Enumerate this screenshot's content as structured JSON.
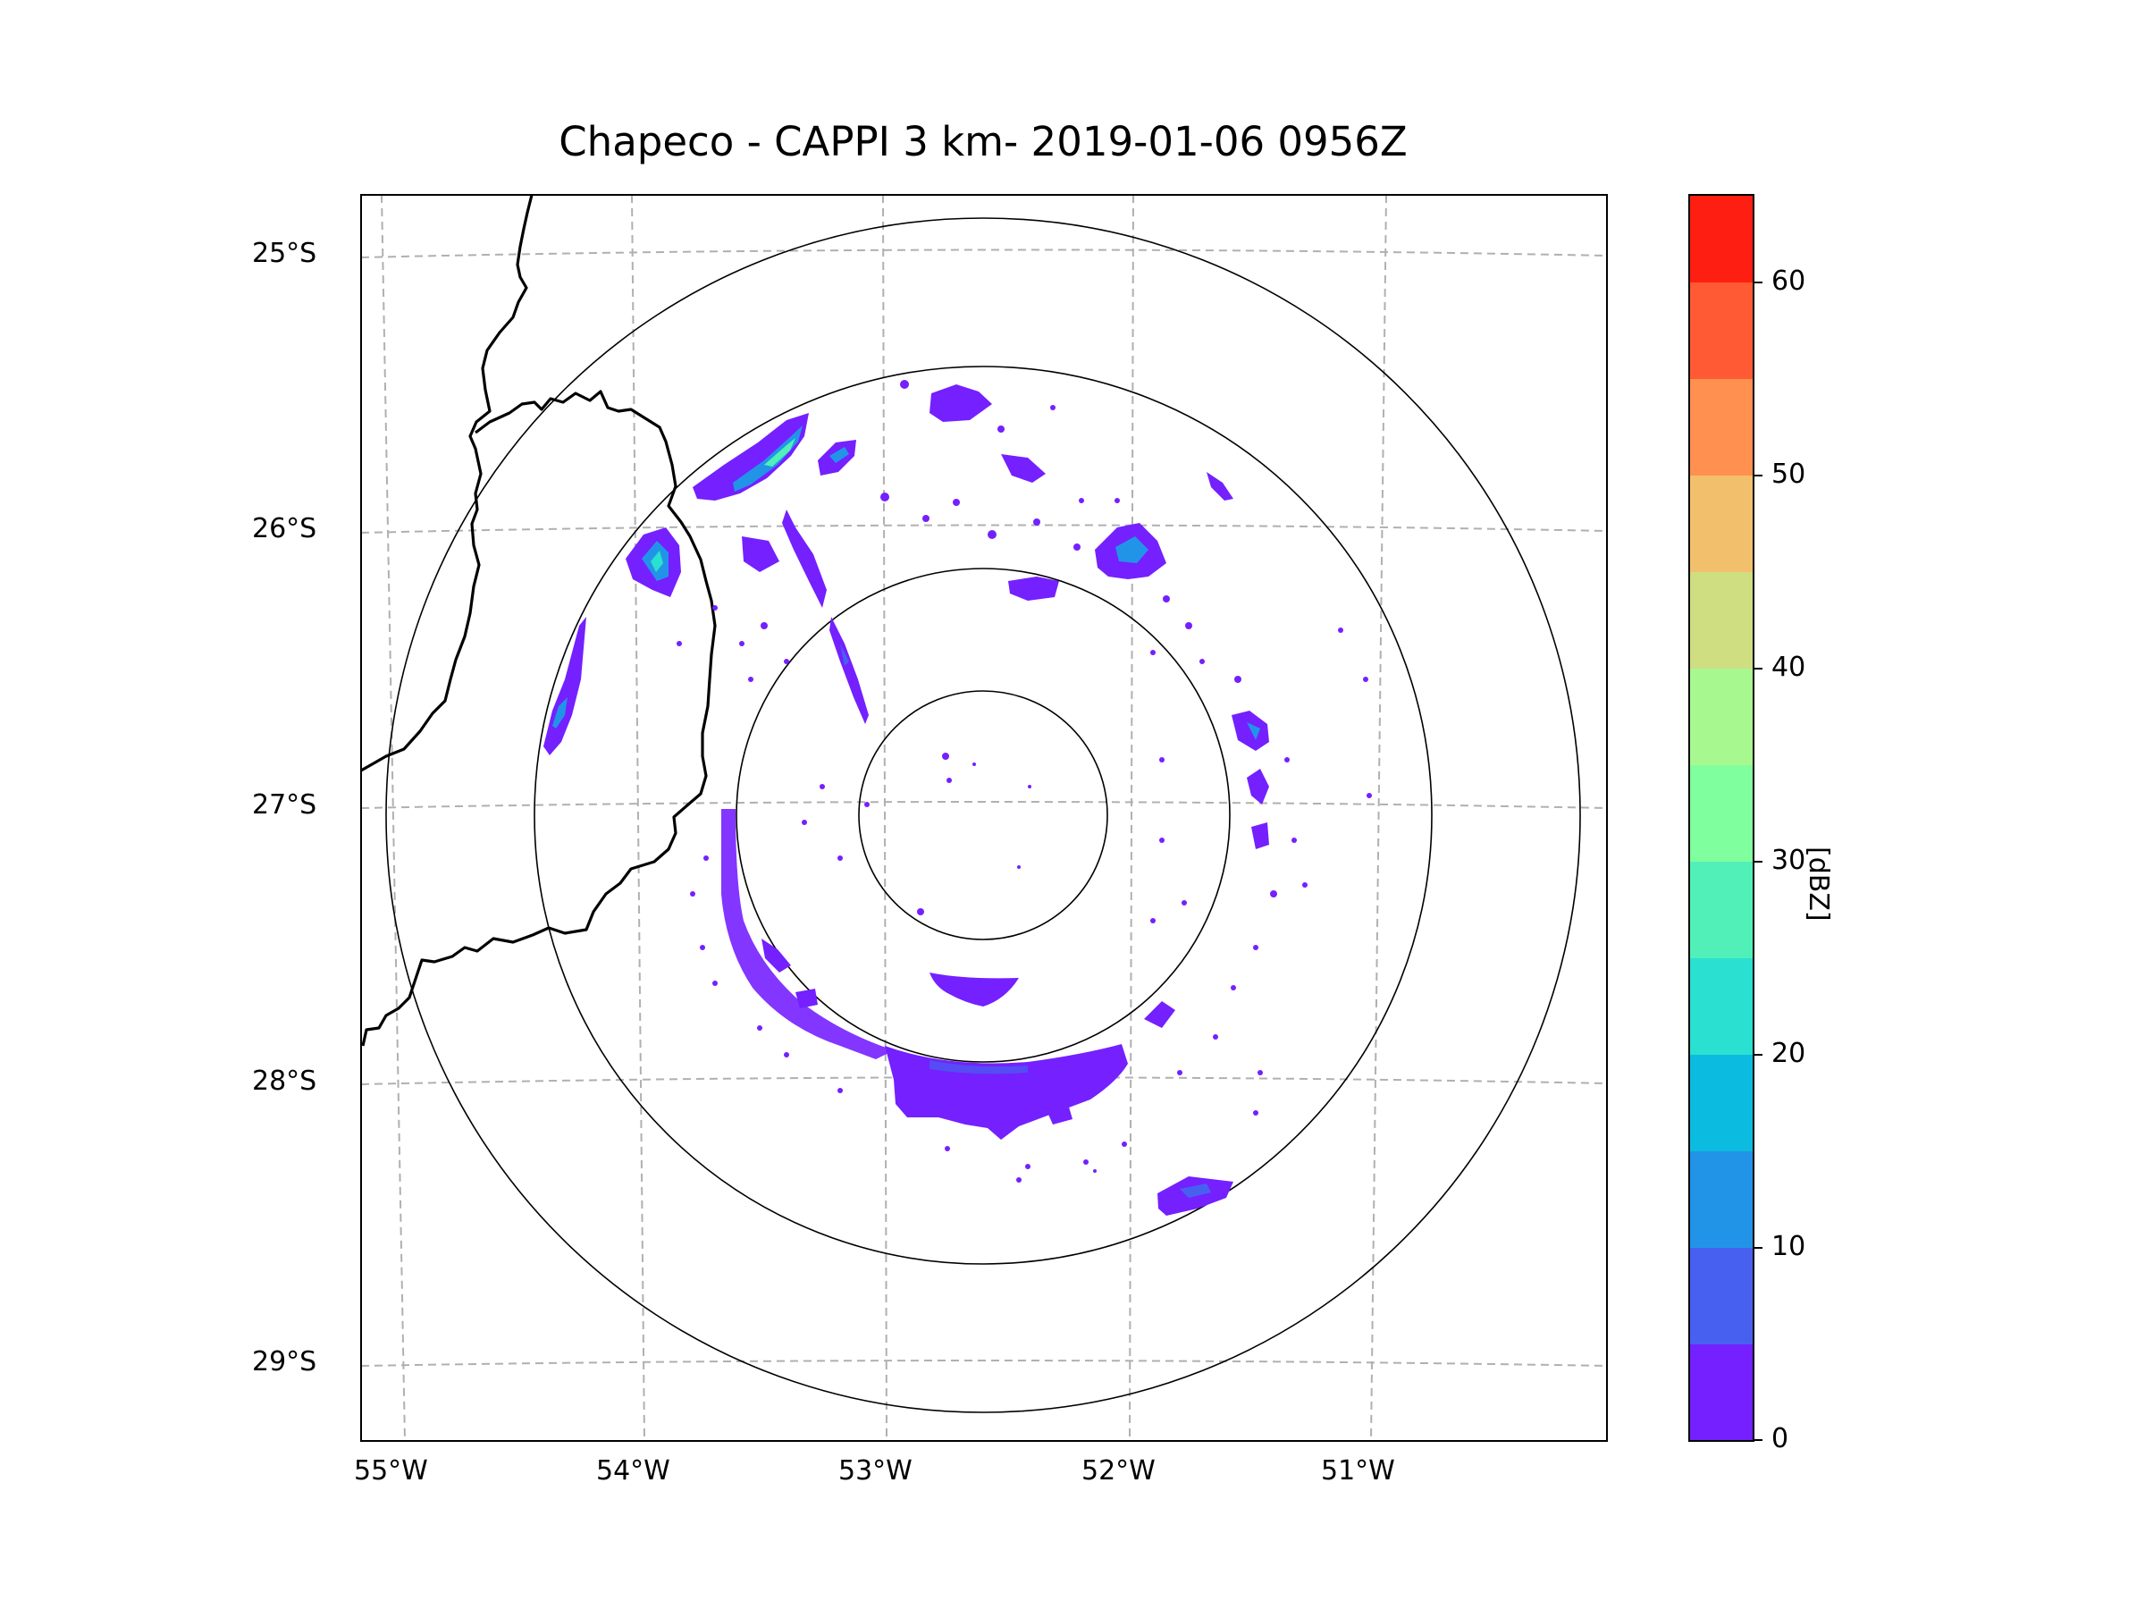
{
  "title": "Chapeco - CAPPI 3 km- 2019-01-06 0956Z",
  "colorbar": {
    "label": "[dBZ]",
    "tick_labels": [
      "0",
      "10",
      "20",
      "30",
      "40",
      "50",
      "60"
    ],
    "bins": [
      0,
      5,
      10,
      15,
      20,
      25,
      30,
      35,
      40,
      45,
      50,
      55,
      60,
      65
    ],
    "colors": [
      "#7420ff",
      "#4860f0",
      "#2294e8",
      "#0cbce0",
      "#2ae0d0",
      "#50f0b8",
      "#80ff9e",
      "#a8f890",
      "#cede80",
      "#f2c06c",
      "#ff9050",
      "#ff5a34",
      "#ff1e12"
    ]
  },
  "y_axis": {
    "labels": [
      "25°S",
      "26°S",
      "27°S",
      "28°S",
      "29°S"
    ]
  },
  "x_axis": {
    "labels": [
      "55°W",
      "54°W",
      "53°W",
      "52°W",
      "51°W"
    ]
  },
  "radar": {
    "site": "Chapeco",
    "product": "CAPPI 3 km",
    "range_rings": 4
  },
  "colors": {
    "grid": "#b0b0b0",
    "border": "#000000",
    "min_echo": "#7420ff"
  }
}
